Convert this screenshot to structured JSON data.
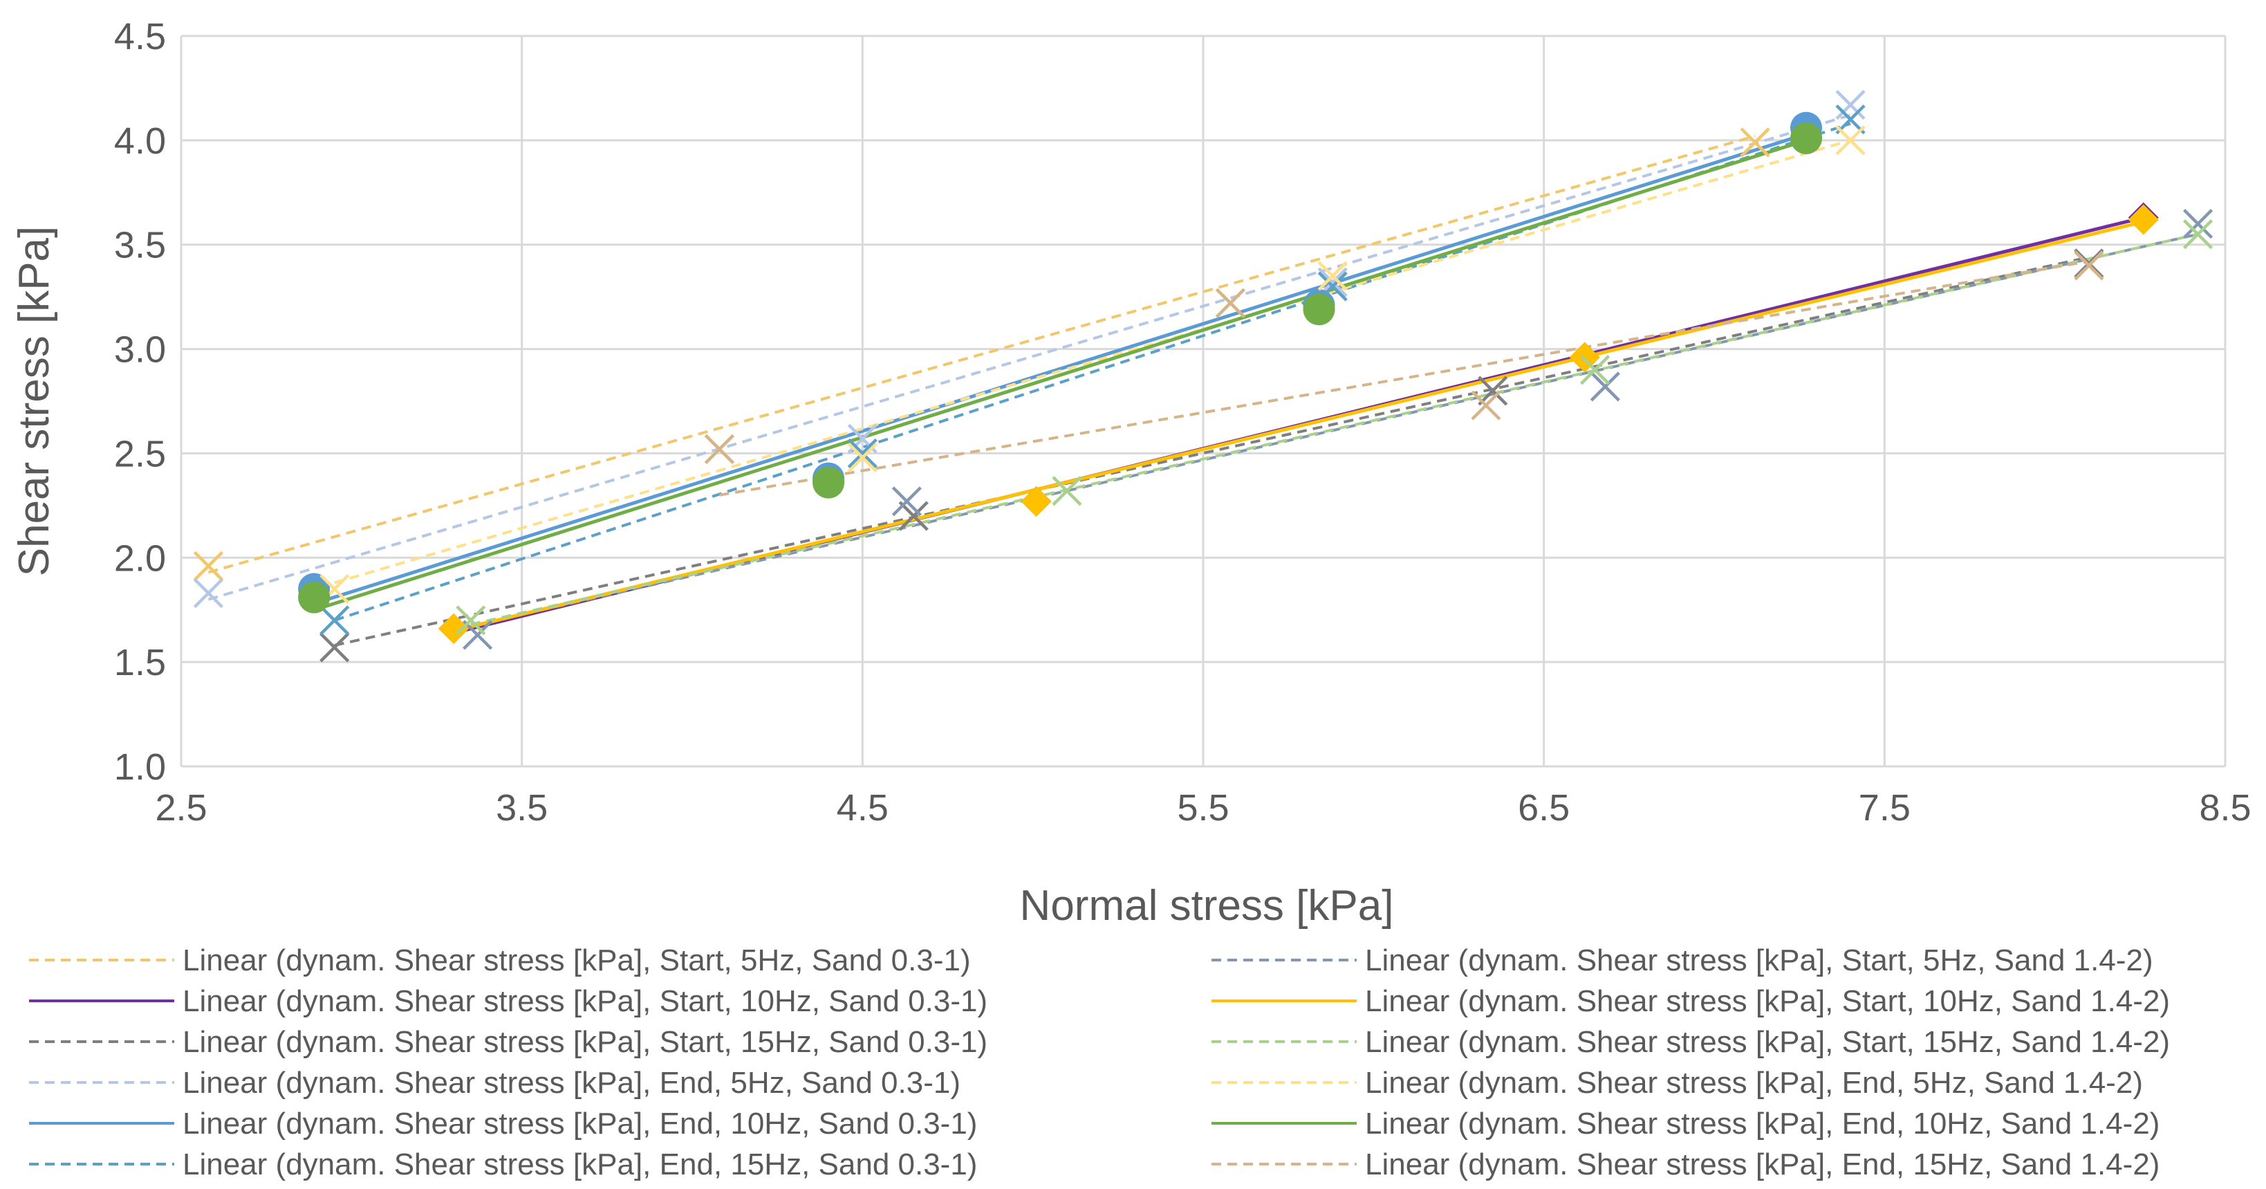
{
  "chart_data": {
    "type": "scatter",
    "title": "",
    "xlabel": "Normal stress [kPa]",
    "ylabel": "Shear stress [kPa]",
    "xlim": [
      2.5,
      8.5
    ],
    "ylim": [
      1.0,
      4.5
    ],
    "xticks": [
      "2.5",
      "3.5",
      "4.5",
      "5.5",
      "6.5",
      "7.5",
      "8.5"
    ],
    "yticks": [
      "1.0",
      "1.5",
      "2.0",
      "2.5",
      "3.0",
      "3.5",
      "4.0",
      "4.5"
    ],
    "grid": true,
    "legend_position": "bottom",
    "series": [
      {
        "name": "Linear (dynam. Shear stress [kPa], Start, 5Hz, Sand 0.3-1)",
        "color": "#f2c76b",
        "dash": true,
        "marker": "x",
        "points": [
          [
            2.58,
            1.96
          ],
          [
            4.08,
            2.52
          ],
          [
            5.58,
            3.22
          ],
          [
            7.12,
            3.99
          ]
        ],
        "line": [
          [
            2.58,
            1.93
          ],
          [
            7.12,
            4.02
          ]
        ]
      },
      {
        "name": "Linear (dynam. Shear stress [kPa], Start, 10Hz, Sand 0.3-1)",
        "color": "#7030a0",
        "dash": false,
        "marker": "diamond",
        "points": [
          [
            3.3,
            1.66
          ],
          [
            5.01,
            2.27
          ],
          [
            6.62,
            2.96
          ],
          [
            8.26,
            3.63
          ]
        ],
        "line": [
          [
            3.3,
            1.64
          ],
          [
            8.26,
            3.63
          ]
        ]
      },
      {
        "name": "Linear (dynam. Shear stress [kPa], Start, 15Hz, Sand 0.3-1)",
        "color": "#7f7f7f",
        "dash": true,
        "marker": "x",
        "points": [
          [
            2.95,
            1.57
          ],
          [
            4.65,
            2.2
          ],
          [
            6.35,
            2.8
          ],
          [
            8.1,
            3.41
          ]
        ],
        "line": [
          [
            2.95,
            1.58
          ],
          [
            8.1,
            3.44
          ]
        ]
      },
      {
        "name": "Linear (dynam. Shear stress [kPa], End, 5Hz, Sand 0.3-1)",
        "color": "#b4c7e7",
        "dash": true,
        "marker": "x",
        "points": [
          [
            2.58,
            1.83
          ],
          [
            4.5,
            2.57
          ],
          [
            5.88,
            3.32
          ],
          [
            7.4,
            4.17
          ]
        ],
        "line": [
          [
            2.58,
            1.8
          ],
          [
            7.4,
            4.12
          ]
        ]
      },
      {
        "name": "Linear (dynam. Shear stress [kPa], End, 10Hz, Sand 0.3-1)",
        "color": "#5b9bd5",
        "dash": false,
        "marker": "circle",
        "points": [
          [
            2.89,
            1.85
          ],
          [
            4.4,
            2.38
          ],
          [
            5.84,
            3.21
          ],
          [
            7.27,
            4.06
          ]
        ],
        "line": [
          [
            2.89,
            1.78
          ],
          [
            7.27,
            4.03
          ]
        ]
      },
      {
        "name": "Linear (dynam. Shear stress [kPa], End, 15Hz, Sand 0.3-1)",
        "color": "#5aa0c8",
        "dash": true,
        "marker": "x",
        "points": [
          [
            2.95,
            1.7
          ],
          [
            4.5,
            2.5
          ],
          [
            5.88,
            3.3
          ],
          [
            7.4,
            4.1
          ]
        ],
        "line": [
          [
            2.95,
            1.7
          ],
          [
            7.4,
            4.08
          ]
        ]
      },
      {
        "name": "Linear (dynam. Shear stress [kPa], Start, 5Hz, Sand 1.4-2)",
        "color": "#8497b0",
        "dash": true,
        "marker": "x",
        "points": [
          [
            3.37,
            1.63
          ],
          [
            4.63,
            2.27
          ],
          [
            6.68,
            2.82
          ],
          [
            8.42,
            3.6
          ]
        ],
        "line": [
          [
            3.37,
            1.68
          ],
          [
            8.42,
            3.55
          ]
        ]
      },
      {
        "name": "Linear (dynam. Shear stress [kPa], Start, 10Hz, Sand 1.4-2)",
        "color": "#ffc000",
        "dash": false,
        "marker": "diamond",
        "points": [
          [
            3.3,
            1.66
          ],
          [
            5.01,
            2.27
          ],
          [
            6.62,
            2.96
          ],
          [
            8.26,
            3.62
          ]
        ],
        "line": [
          [
            3.3,
            1.65
          ],
          [
            8.26,
            3.61
          ]
        ]
      },
      {
        "name": "Linear (dynam. Shear stress [kPa], Start, 15Hz, Sand 1.4-2)",
        "color": "#a9d18e",
        "dash": true,
        "marker": "x",
        "points": [
          [
            3.35,
            1.7
          ],
          [
            5.1,
            2.32
          ],
          [
            6.65,
            2.9
          ],
          [
            8.42,
            3.55
          ]
        ],
        "line": [
          [
            3.35,
            1.68
          ],
          [
            8.42,
            3.55
          ]
        ]
      },
      {
        "name": "Linear (dynam. Shear stress [kPa], End, 5Hz, Sand 1.4-2)",
        "color": "#ffe08a",
        "dash": true,
        "marker": "x",
        "points": [
          [
            2.95,
            1.85
          ],
          [
            4.5,
            2.48
          ],
          [
            5.88,
            3.35
          ],
          [
            7.4,
            4.0
          ]
        ],
        "line": [
          [
            2.95,
            1.88
          ],
          [
            7.4,
            4.0
          ]
        ]
      },
      {
        "name": "Linear (dynam. Shear stress [kPa], End, 10Hz, Sand 1.4-2)",
        "color": "#70ad47",
        "dash": false,
        "marker": "circle",
        "points": [
          [
            2.89,
            1.81
          ],
          [
            4.4,
            2.36
          ],
          [
            5.84,
            3.19
          ],
          [
            7.27,
            4.01
          ]
        ],
        "line": [
          [
            2.89,
            1.75
          ],
          [
            7.27,
            4.0
          ]
        ]
      },
      {
        "name": "Linear (dynam. Shear stress [kPa], End, 15Hz, Sand 1.4-2)",
        "color": "#d6b48a",
        "dash": true,
        "marker": "x",
        "points": [
          [
            4.08,
            2.52
          ],
          [
            5.58,
            3.22
          ],
          [
            6.33,
            2.73
          ],
          [
            8.1,
            3.4
          ]
        ],
        "line": [
          [
            4.08,
            2.3
          ],
          [
            8.1,
            3.42
          ]
        ]
      }
    ]
  }
}
